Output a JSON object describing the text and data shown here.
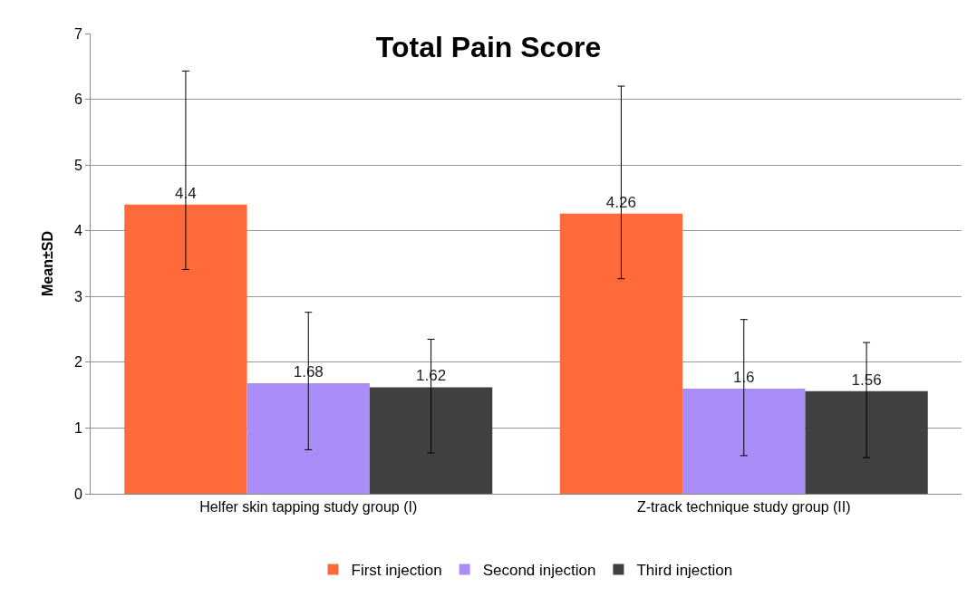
{
  "chart_data": {
    "type": "bar",
    "title": "Total Pain Score",
    "ylabel": "Mean±SD",
    "categories": [
      "Helfer skin tapping study group (I)",
      "Z-track technique study group (II)"
    ],
    "series": [
      {
        "name": "First injection",
        "color": "#ff6a3a",
        "values": [
          4.4,
          4.26
        ],
        "errors": [
          [
            3.41,
            6.43
          ],
          [
            3.27,
            6.2
          ]
        ]
      },
      {
        "name": "Second injection",
        "color": "#a98cf5",
        "values": [
          1.68,
          1.6
        ],
        "errors": [
          [
            0.67,
            2.76
          ],
          [
            0.58,
            2.65
          ]
        ]
      },
      {
        "name": "Third injection",
        "color": "#404040",
        "values": [
          1.62,
          1.56
        ],
        "errors": [
          [
            0.62,
            2.35
          ],
          [
            0.55,
            2.3
          ]
        ]
      }
    ],
    "ylim": [
      0,
      7
    ],
    "yticks": [
      0,
      1,
      2,
      3,
      4,
      5,
      6,
      7
    ],
    "grid": "y",
    "legend": "bottom",
    "data_labels": true
  }
}
